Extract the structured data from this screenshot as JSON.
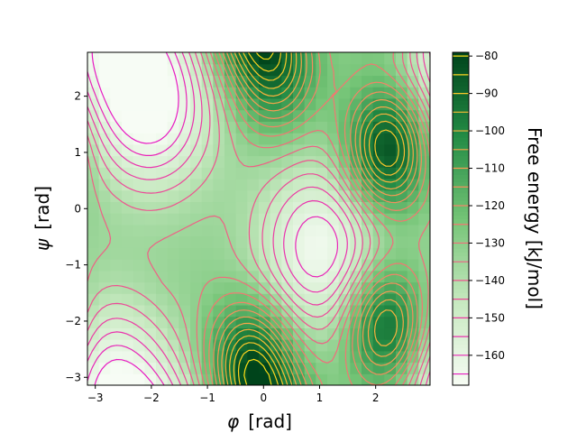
{
  "chart_data": {
    "type": "heatmap",
    "title": "",
    "xlabel_symbol": "φ",
    "xlabel_unit": "[rad]",
    "ylabel_symbol": "ψ",
    "ylabel_unit": "[rad]",
    "xlim": [
      -3.14,
      2.97
    ],
    "ylim": [
      -3.14,
      2.78
    ],
    "x_ticks": [
      -3,
      -2,
      -1,
      0,
      1,
      2
    ],
    "x_tick_labels": [
      "−3",
      "−2",
      "−1",
      "0",
      "1",
      "2"
    ],
    "y_ticks": [
      -3,
      -2,
      -1,
      0,
      1,
      2
    ],
    "y_tick_labels": [
      "−3",
      "−2",
      "−1",
      "0",
      "1",
      "2"
    ],
    "grid": false,
    "colormap": "PRGn (green half, dark = low energy)",
    "colorbar": {
      "label": "Free energy [kJ/mol]",
      "range": [
        -168,
        -79
      ],
      "ticks": [
        -80,
        -90,
        -100,
        -110,
        -120,
        -130,
        -140,
        -150,
        -160
      ],
      "tick_labels": [
        "−80",
        "−90",
        "−100",
        "−110",
        "−120",
        "−130",
        "−140",
        "−150",
        "−160"
      ],
      "contour_levels": [
        -80,
        -85,
        -90,
        -95,
        -100,
        -105,
        -110,
        -115,
        -120,
        -125,
        -130,
        -135,
        -140,
        -145,
        -150,
        -155,
        -160,
        -165
      ]
    },
    "free_energy_features": [
      {
        "kind": "minimum",
        "phi": 2.2,
        "psi": 1.05,
        "value": -80
      },
      {
        "kind": "minimum",
        "phi": 2.2,
        "psi": -2.1,
        "value": -85
      },
      {
        "kind": "minimum",
        "phi": -0.25,
        "psi": -2.75,
        "value": -85
      },
      {
        "kind": "minimum",
        "phi": 0.2,
        "psi": 2.5,
        "value": -95
      },
      {
        "kind": "maximum",
        "phi": -2.0,
        "psi": 1.8,
        "value": -168
      },
      {
        "kind": "maximum",
        "phi": 1.0,
        "psi": -0.7,
        "value": -165
      },
      {
        "kind": "maximum",
        "phi": -2.8,
        "psi": -3.0,
        "value": -160
      }
    ]
  }
}
